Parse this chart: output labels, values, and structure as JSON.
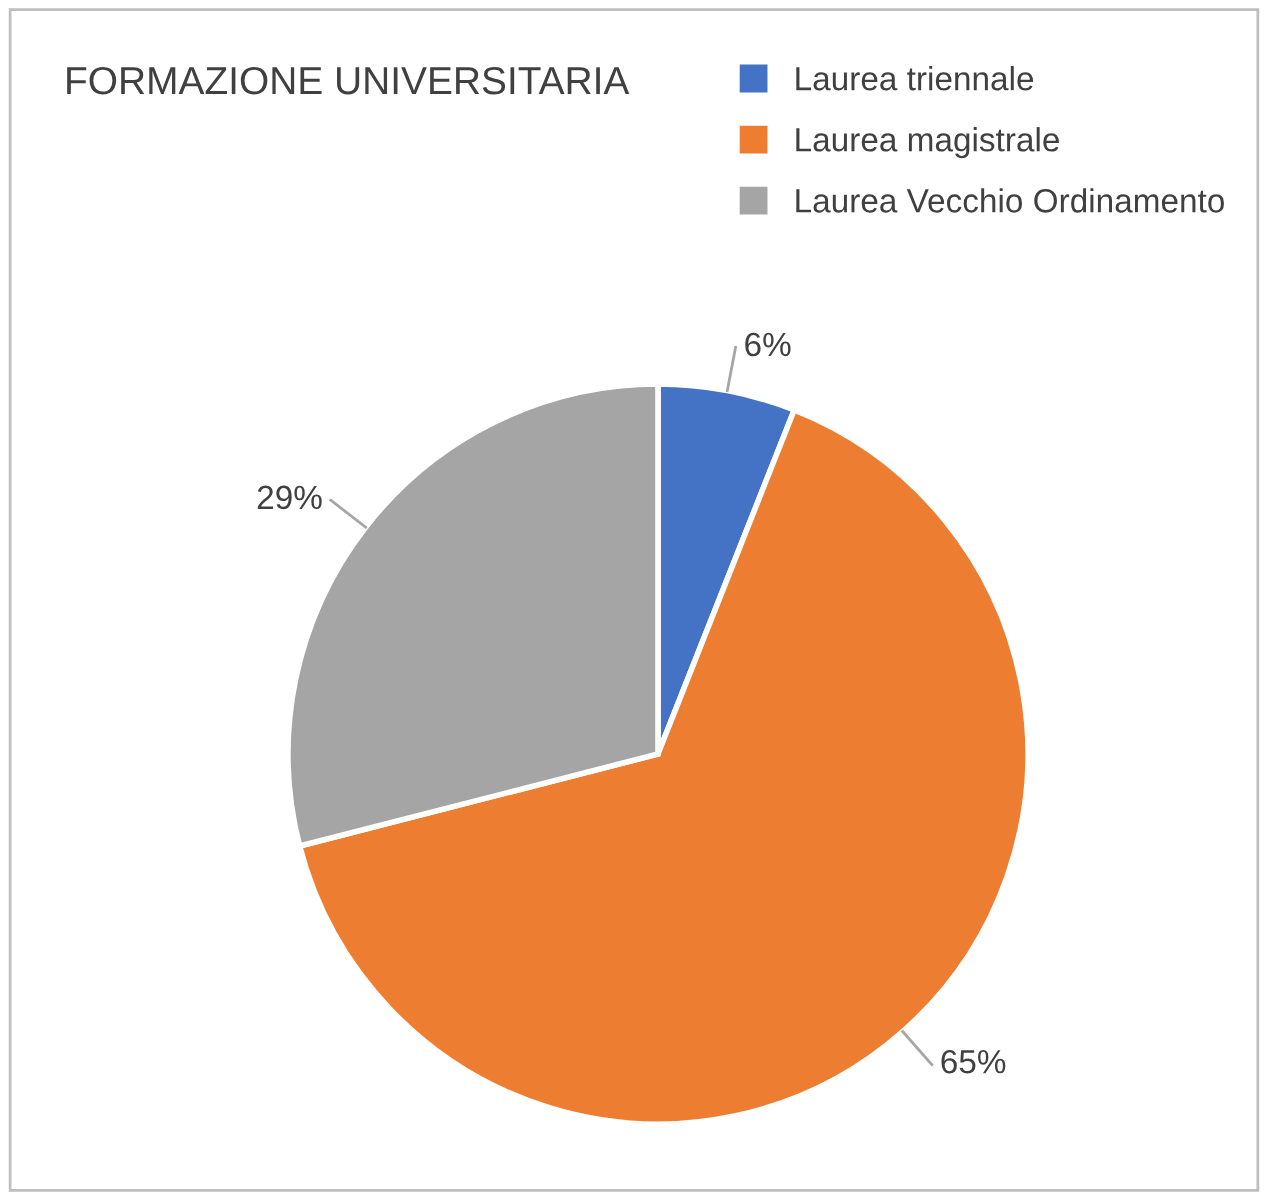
{
  "chart_data": {
    "type": "pie",
    "title": "FORMAZIONE UNIVERSITARIA",
    "categories": [
      "Laurea triennale",
      "Laurea magistrale",
      "Laurea Vecchio Ordinamento"
    ],
    "values": [
      6,
      65,
      29
    ],
    "colors": [
      "#4472c4",
      "#ed7d31",
      "#a5a5a5"
    ],
    "value_labels": [
      "6%",
      "65%",
      "29%"
    ],
    "legend": "top right"
  }
}
